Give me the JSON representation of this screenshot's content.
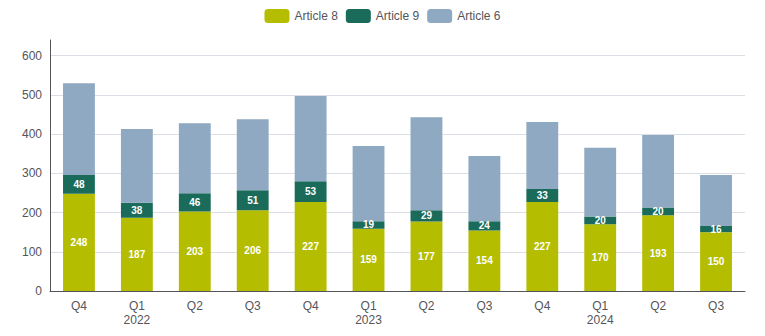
{
  "chart_data": {
    "type": "bar",
    "stacked": true,
    "categories": [
      "Q4",
      "Q1\n2022",
      "Q2",
      "Q3",
      "Q4",
      "Q1\n2023",
      "Q2",
      "Q3",
      "Q4",
      "Q1\n2024",
      "Q2",
      "Q3"
    ],
    "series": [
      {
        "name": "Article 8",
        "color": "#b5bd00",
        "data_labels": true,
        "values": [
          248,
          187,
          203,
          206,
          227,
          159,
          177,
          154,
          227,
          170,
          193,
          150
        ]
      },
      {
        "name": "Article 9",
        "color": "#1a6b5a",
        "data_labels": true,
        "values": [
          48,
          38,
          46,
          51,
          53,
          19,
          29,
          24,
          33,
          20,
          20,
          16
        ]
      },
      {
        "name": "Article 6",
        "color": "#8ea9c1",
        "data_labels": false,
        "values": [
          234,
          188,
          179,
          181,
          217,
          192,
          237,
          166,
          171,
          175,
          185,
          130
        ]
      }
    ],
    "ylim": [
      0,
      640
    ],
    "yticks": [
      0,
      100,
      200,
      300,
      400,
      500,
      600
    ],
    "grid": true,
    "legend": "top"
  }
}
